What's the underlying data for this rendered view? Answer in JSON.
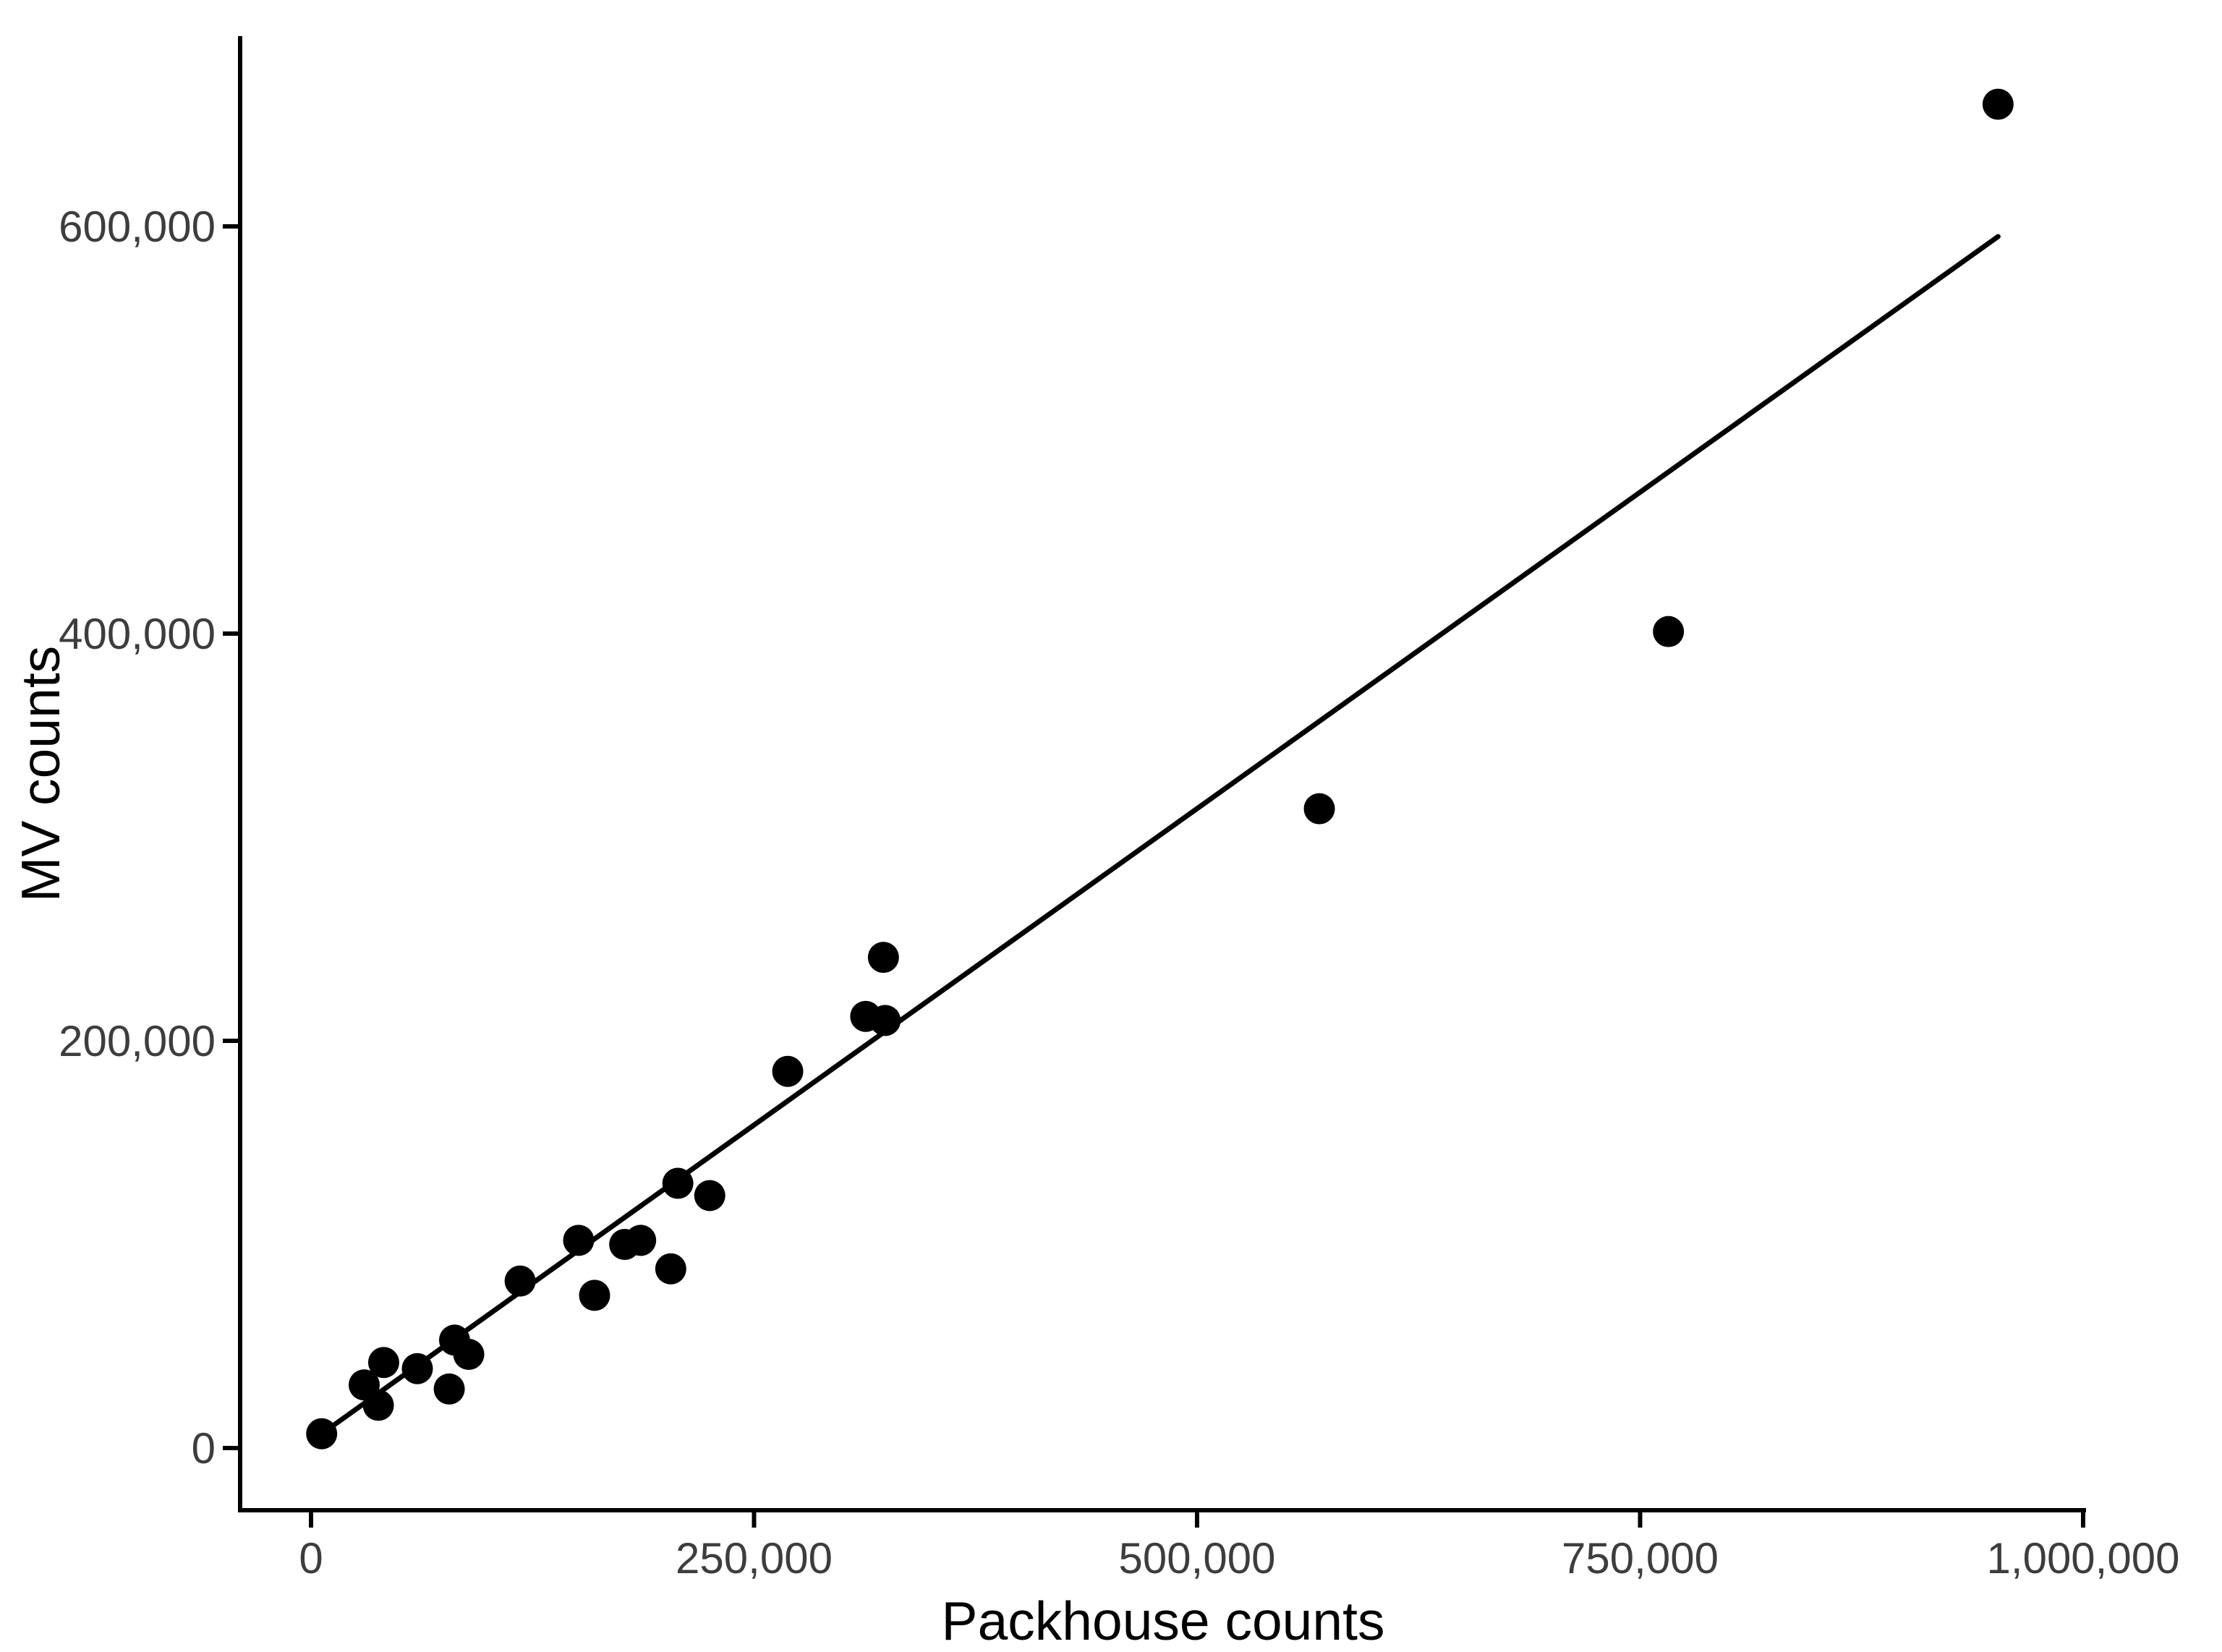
{
  "chart_data": {
    "type": "scatter",
    "title": "",
    "xlabel": "Packhouse counts",
    "ylabel": "MV counts",
    "grid": false,
    "legend": false,
    "xlim": [
      0,
      1000000
    ],
    "ylim": [
      0,
      683000
    ],
    "x_ticks": [
      {
        "value": 0,
        "label": "0"
      },
      {
        "value": 250000,
        "label": "250,000"
      },
      {
        "value": 500000,
        "label": "500,000"
      },
      {
        "value": 750000,
        "label": "750,000"
      },
      {
        "value": 1000000,
        "label": "1,000,000"
      }
    ],
    "y_ticks": [
      {
        "value": 0,
        "label": "0"
      },
      {
        "value": 200000,
        "label": "200,000"
      },
      {
        "value": 400000,
        "label": "400,000"
      },
      {
        "value": 600000,
        "label": "600,000"
      }
    ],
    "points": [
      {
        "x": 6000,
        "y": 7000
      },
      {
        "x": 30000,
        "y": 31000
      },
      {
        "x": 41000,
        "y": 42000
      },
      {
        "x": 38000,
        "y": 21000
      },
      {
        "x": 60000,
        "y": 39000
      },
      {
        "x": 81000,
        "y": 53000
      },
      {
        "x": 89000,
        "y": 46000
      },
      {
        "x": 78000,
        "y": 29000
      },
      {
        "x": 118000,
        "y": 82000
      },
      {
        "x": 151000,
        "y": 102000
      },
      {
        "x": 177000,
        "y": 100000
      },
      {
        "x": 186000,
        "y": 102000
      },
      {
        "x": 160000,
        "y": 75000
      },
      {
        "x": 203000,
        "y": 88000
      },
      {
        "x": 207000,
        "y": 130000
      },
      {
        "x": 225000,
        "y": 124000
      },
      {
        "x": 269000,
        "y": 185000
      },
      {
        "x": 313000,
        "y": 212000
      },
      {
        "x": 324000,
        "y": 210000
      },
      {
        "x": 323000,
        "y": 241000
      },
      {
        "x": 569000,
        "y": 314000
      },
      {
        "x": 766000,
        "y": 401000
      },
      {
        "x": 952000,
        "y": 660000
      }
    ],
    "fit_line": {
      "x1": 6000,
      "y1": 7000,
      "x2": 952000,
      "y2": 595000
    },
    "colors": {
      "points": "#000000",
      "fit_line": "#000000",
      "axis": "#000000",
      "tick_labels": "#3d3d3d",
      "axis_titles": "#000000",
      "background": "#ffffff"
    }
  }
}
